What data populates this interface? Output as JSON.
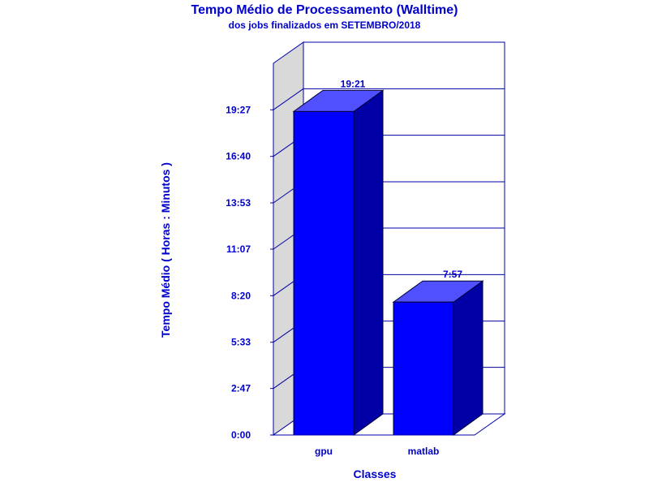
{
  "chart_data": {
    "type": "bar",
    "title": "Tempo Médio de Processamento (Walltime)",
    "subtitle": "dos jobs finalizados em SETEMBRO/2018",
    "xlabel": "Classes",
    "ylabel": "Tempo Médio ( Horas : Minutos )",
    "categories": [
      "gpu",
      "matlab"
    ],
    "values": [
      19.35,
      7.95
    ],
    "value_labels": [
      "19:21",
      "7:57"
    ],
    "y_ticks": [
      0,
      2.7833,
      5.55,
      8.3333,
      11.1167,
      13.8833,
      16.6667,
      19.45
    ],
    "y_tick_labels": [
      "0:00",
      "2:47",
      "5:33",
      "8:20",
      "11:07",
      "13:53",
      "16:40",
      "19:27"
    ],
    "ylim": [
      0,
      22.2333
    ],
    "grid": true,
    "legend": "none",
    "style": "3d",
    "colors": {
      "text": "#0000cc",
      "bar_front": "#0000ff",
      "bar_top": "#5050ff",
      "bar_side": "#0000a6",
      "wall_side": "#d9d9d9",
      "frame": "#0000aa",
      "grid": "#0000aa"
    }
  }
}
